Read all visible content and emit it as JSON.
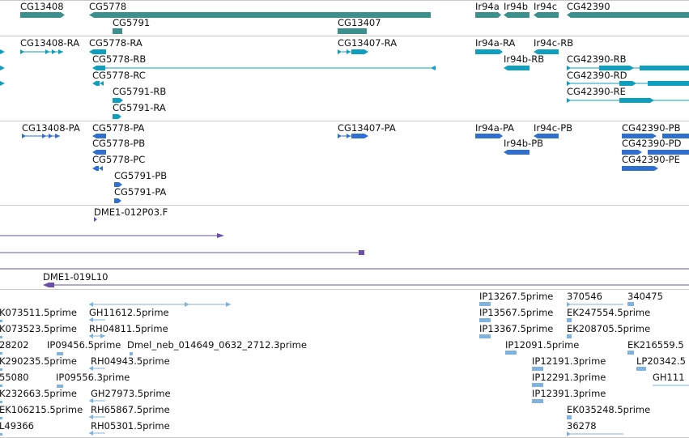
{
  "tracks": {
    "gene_span": {
      "labels": [
        "CG13408",
        "CG5778",
        "CG5791",
        "CG13407",
        "Ir94a",
        "Ir94b",
        "Ir94c",
        "CG42390"
      ],
      "color": "#3b8f8c"
    },
    "transcripts_RA": {
      "labels": [
        "CG13408-RA",
        "CG5778-RA",
        "CG5778-RB",
        "CG5778-RC",
        "CG5791-RB",
        "CG5791-RA",
        "CG13407-RA",
        "Ir94a-RA",
        "Ir94c-RB",
        "Ir94b-RB",
        "CG42390-RB",
        "CG42390-RD",
        "CG42390-RE"
      ],
      "color": "#0e9fbf"
    },
    "proteins_PA": {
      "labels": [
        "CG13408-PA",
        "CG5778-PA",
        "CG5778-PB",
        "CG5778-PC",
        "CG5791-PB",
        "CG5791-PA",
        "CG13407-PA",
        "Ir94a-PA",
        "Ir94c-PB",
        "Ir94b-PB",
        "CG42390-PB",
        "CG42390-PD",
        "CG42390-PE"
      ],
      "color": "#2f6fd0"
    },
    "bac_clones": {
      "labels": [
        "DME1-012P03.F",
        "DME1-019L10"
      ],
      "color": "#6a4fa8"
    },
    "ests": {
      "labels": [
        "K073511.5prime",
        "GH11612.5prime",
        "K073523.5prime",
        "RH04811.5prime",
        "28202",
        "IP09456.5prime",
        "Dmel_neb_014649_0632_2712.3prime",
        "K290235.5prime",
        "RH04943.5prime",
        "55080",
        "IP09556.3prime",
        "K232663.5prime",
        "GH27973.5prime",
        "EK106215.5prime",
        "RH65867.5prime",
        "L49366",
        "RH05301.5prime",
        "IP13267.5prime",
        "370546",
        "340475",
        "IP13567.5prime",
        "EK247554.5prime",
        "IP13367.5prime",
        "EK208705.5prime",
        "IP12091.5prime",
        "EK216559.5",
        "IP12191.3prime",
        "LP20342.5",
        "IP12291.3prime",
        "GH111",
        "IP12391.3prime",
        "EK035248.5prime",
        "36278"
      ],
      "color": "#7fb3dd"
    }
  }
}
